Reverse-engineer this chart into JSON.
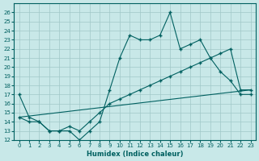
{
  "xlabel": "Humidex (Indice chaleur)",
  "xlim": [
    -0.5,
    23.5
  ],
  "ylim": [
    12,
    27
  ],
  "yticks": [
    12,
    13,
    14,
    15,
    16,
    17,
    18,
    19,
    20,
    21,
    22,
    23,
    24,
    25,
    26
  ],
  "xticks": [
    0,
    1,
    2,
    3,
    4,
    5,
    6,
    7,
    8,
    9,
    10,
    11,
    12,
    13,
    14,
    15,
    16,
    17,
    18,
    19,
    20,
    21,
    22,
    23
  ],
  "bg_color": "#c8e8e8",
  "grid_color": "#a0c8c8",
  "line_color": "#006060",
  "line1_x": [
    0,
    1,
    2,
    3,
    4,
    5,
    6,
    7,
    8,
    9,
    10,
    11,
    12,
    13,
    14,
    15,
    16,
    17,
    18,
    19,
    20,
    21,
    22,
    23
  ],
  "line1_y": [
    17,
    14.5,
    14,
    13,
    13,
    13,
    12,
    13,
    14,
    17.5,
    21,
    23.5,
    23,
    23,
    23.5,
    26,
    22,
    22.5,
    23,
    21,
    19.5,
    18.5,
    17,
    17
  ],
  "line2_x": [
    0,
    1,
    2,
    3,
    4,
    5,
    6,
    7,
    8,
    9,
    10,
    11,
    12,
    13,
    14,
    15,
    16,
    17,
    18,
    19,
    20,
    21,
    22,
    23
  ],
  "line2_y": [
    14.5,
    14,
    14,
    13,
    13,
    13.5,
    13,
    14,
    15,
    16,
    16.5,
    17,
    17.5,
    18,
    18.5,
    19,
    19.5,
    20,
    20.5,
    21,
    21.5,
    22,
    17.5,
    17.5
  ],
  "line3_x": [
    0,
    23
  ],
  "line3_y": [
    14.5,
    17.5
  ]
}
